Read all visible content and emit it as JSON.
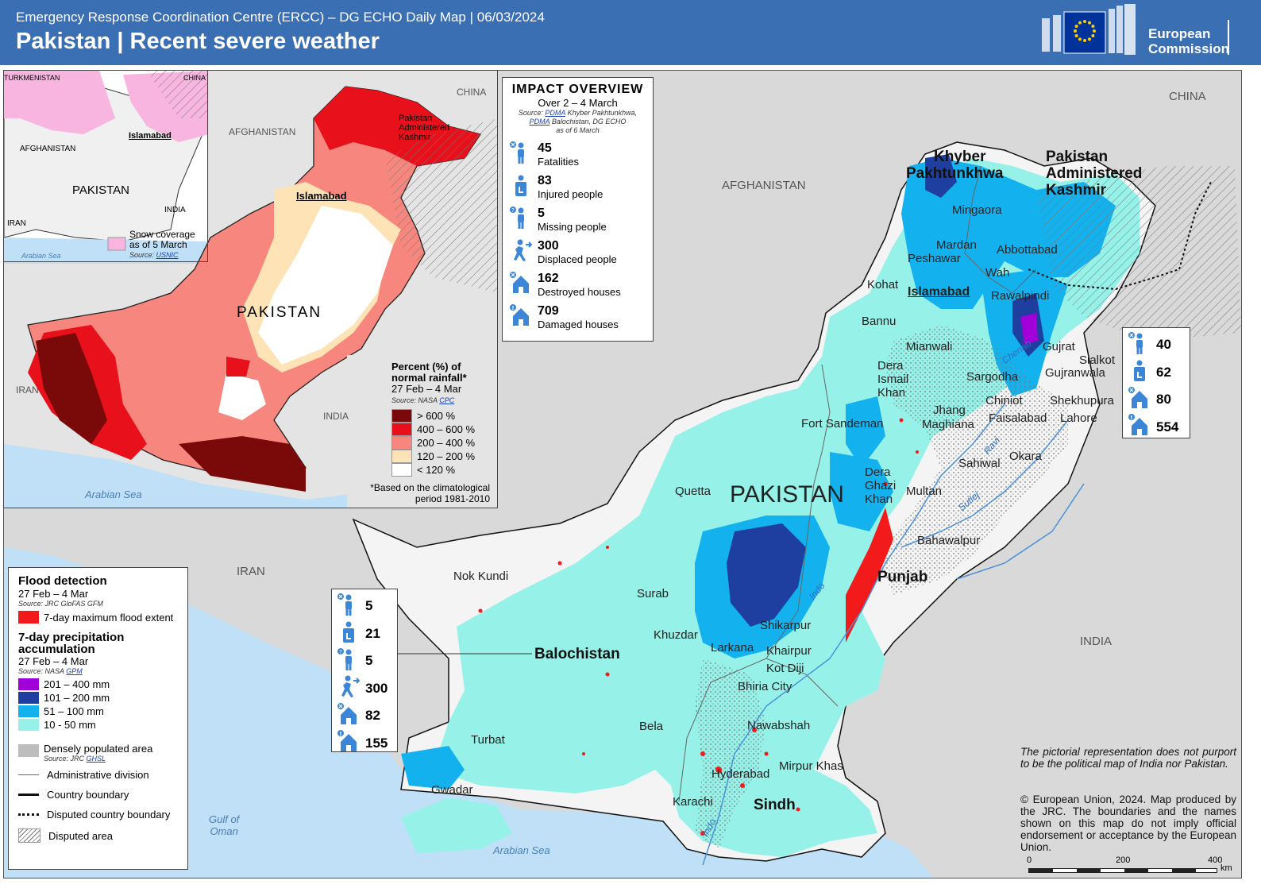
{
  "header": {
    "subtitle": "Emergency Response Coordination Centre (ERCC) – DG ECHO Daily Map | 06/03/2024",
    "title": "Pakistan | Recent severe weather",
    "logo_text_1": "European",
    "logo_text_2": "Commission",
    "colors": {
      "bar": "#3b6fb3",
      "eu_flag": "#003399",
      "eu_stars": "#ffcc00"
    }
  },
  "map_labels": {
    "countries": {
      "afghanistan": "AFGHANISTAN",
      "china": "CHINA",
      "india": "INDIA",
      "iran": "IRAN",
      "pakistan": "PAKISTAN"
    },
    "provinces": {
      "kp_1": "Khyber",
      "kp_2": "Pakhtunkhwa",
      "pak_1": "Pakistan",
      "pak_2": "Administered",
      "pak_3": "Kashmir",
      "punjab": "Punjab",
      "balochistan": "Balochistan",
      "sindh": "Sindh"
    },
    "cities": {
      "mingaora": "Mingaora",
      "mardan": "Mardan",
      "peshawar": "Peshawar",
      "abbottabad": "Abbottabad",
      "wah": "Wah",
      "kohat": "Kohat",
      "islamabad": "Islamabad",
      "rawalpindi": "Rawalpindi",
      "bannu": "Bannu",
      "mianwali": "Mianwali",
      "gujrat": "Gujrat",
      "sialkot": "Sialkot",
      "dera_ismail_1": "Dera",
      "dera_ismail_2": "Ismail",
      "dera_ismail_3": "Khan",
      "sargodha": "Sargodha",
      "gujranwala": "Gujranwala",
      "chiniot": "Chiniot",
      "shekhupura": "Shekhupura",
      "jhang": "Jhang",
      "maghiana": "Maghiana",
      "faisalabad": "Faisalabad",
      "lahore": "Lahore",
      "fort_sandeman": "Fort Sandeman",
      "sahiwal": "Sahiwal",
      "okara": "Okara",
      "quetta": "Quetta",
      "dera_ghazi_1": "Dera",
      "dera_ghazi_2": "Ghazi",
      "dera_ghazi_3": "Khan",
      "multan": "Multan",
      "bahawalpur": "Bahawalpur",
      "nok_kundi": "Nok Kundi",
      "surab": "Surab",
      "shikarpur": "Shikarpur",
      "khuzdar": "Khuzdar",
      "larkana": "Larkana",
      "khairpur": "Khairpur",
      "kot_diji": "Kot Diji",
      "bhiria_city": "Bhiria City",
      "bela": "Bela",
      "nawabshah": "Nawabshah",
      "turbat": "Turbat",
      "hyderabad": "Hyderabad",
      "mirpur_khas": "Mirpur Khas",
      "gwadar": "Gwadar",
      "karachi": "Karachi"
    },
    "rivers": {
      "chenab": "Chenab",
      "ravi": "Ravi",
      "sutlej": "Sutlej",
      "indo": "Indo",
      "indo2": "Indo"
    },
    "seas": {
      "gulf_1": "Gulf of",
      "gulf_2": "Oman",
      "arabian_sea": "Arabian Sea"
    }
  },
  "inset_snow": {
    "labels": {
      "turkmenistan": "TURKMENISTAN",
      "china": "CHINA",
      "afghanistan": "AFGHANISTAN",
      "islamabad": "Islamabad",
      "pakistan": "PAKISTAN",
      "india": "INDIA",
      "iran": "IRAN",
      "arabian_sea": "Arabian Sea"
    },
    "legend_text_1": "Snow coverage",
    "legend_text_2": "as of 5 March",
    "source_prefix": "Source:",
    "source_link": "USNIC",
    "snow_color": "#f7b5df"
  },
  "inset_rainfall": {
    "labels": {
      "china": "CHINA",
      "afghanistan": "AFGHANISTAN",
      "pak_1": "Pakistan",
      "pak_2": "Administered",
      "pak_3": "Kashmir",
      "islamabad": "Islamabad",
      "pakistan": "PAKISTAN",
      "iran": "IRAN",
      "india": "INDIA",
      "arabian_sea": "Arabian Sea"
    },
    "legend_title_1": "Percent (%) of",
    "legend_title_2": "normal rainfall*",
    "legend_period": "27 Feb – 4 Mar",
    "source_prefix": "Source:  NASA",
    "source_link": "CPC",
    "classes": [
      {
        "label": "> 600 %",
        "color": "#7a0a0a"
      },
      {
        "label": "400 – 600 %",
        "color": "#e8101a"
      },
      {
        "label": "200 – 400 %",
        "color": "#f7877e"
      },
      {
        "label": "120 – 200 %",
        "color": "#fde3b5"
      },
      {
        "label": "< 120 %",
        "color": "#ffffff"
      }
    ],
    "note_1": "*Based on the climatological",
    "note_2": "period 1981-2010"
  },
  "impact_overview": {
    "title": "IMPACT OVERVIEW",
    "subtitle": "Over 2 – 4 March",
    "source_1_prefix": "Source:",
    "source_1_link": "PDMA",
    "source_1_suffix": "Khyber Pakhtunkhwa,",
    "source_2_link": "PDMA",
    "source_2_suffix": "Balochistan, DG ECHO",
    "source_3": "as of 6 March",
    "items": [
      {
        "icon": "fatalities-icon",
        "value": "45",
        "label": "Fatalities"
      },
      {
        "icon": "injured-icon",
        "value": "83",
        "label": "Injured people"
      },
      {
        "icon": "missing-icon",
        "value": "5",
        "label": "Missing people"
      },
      {
        "icon": "displaced-icon",
        "value": "300",
        "label": "Displaced people"
      },
      {
        "icon": "destroyed-house-icon",
        "value": "162",
        "label": "Destroyed houses"
      },
      {
        "icon": "damaged-house-icon",
        "value": "709",
        "label": "Damaged  houses"
      }
    ]
  },
  "kp_stats": [
    {
      "icon": "fatalities-icon",
      "value": "40"
    },
    {
      "icon": "injured-icon",
      "value": "62"
    },
    {
      "icon": "destroyed-house-icon",
      "value": "80"
    },
    {
      "icon": "damaged-house-icon",
      "value": "554"
    }
  ],
  "balochistan_stats": [
    {
      "icon": "fatalities-icon",
      "value": "5"
    },
    {
      "icon": "injured-icon",
      "value": "21"
    },
    {
      "icon": "missing-icon",
      "value": "5"
    },
    {
      "icon": "displaced-icon",
      "value": "300"
    },
    {
      "icon": "destroyed-house-icon",
      "value": "82"
    },
    {
      "icon": "damaged-house-icon",
      "value": "155"
    }
  ],
  "legend": {
    "flood_title": "Flood detection",
    "flood_period": "27 Feb – 4 Mar",
    "flood_source": "Source: JRC GloFAS  GFM",
    "flood_item": "7-day maximum flood extent",
    "flood_color": "#f21a1a",
    "precip_title_1": "7-day precipitation",
    "precip_title_2": "accumulation",
    "precip_period": "27 Feb – 4 Mar",
    "precip_source_prefix": "Source:  NASA",
    "precip_source_link": "GPM",
    "precip_classes": [
      {
        "label": "201 – 400 mm",
        "color": "#a100d9"
      },
      {
        "label": "101 – 200 mm",
        "color": "#1f3fa0"
      },
      {
        "label": "51 – 100 mm",
        "color": "#13b2ef"
      },
      {
        "label": "10 - 50 mm",
        "color": "#96f2e8"
      }
    ],
    "populated_label": "Densely populated area",
    "populated_source_prefix": "Source:  JRC",
    "populated_source_link": "GHSL",
    "admin_label": "Administrative division",
    "country_label": "Country boundary",
    "disputed_boundary_label": "Disputed country boundary",
    "disputed_area_label": "Disputed area"
  },
  "disclaimer": {
    "text_1": "The pictorial representation does not purport to be the political map of India nor Pakistan.",
    "text_2": "© European Union, 2024. Map produced by the JRC. The boundaries and the names shown on this map do not imply official endorsement or acceptance by the European Union."
  },
  "scale_bar": {
    "t0": "0",
    "t1": "200",
    "t2": "400",
    "unit": "km"
  }
}
